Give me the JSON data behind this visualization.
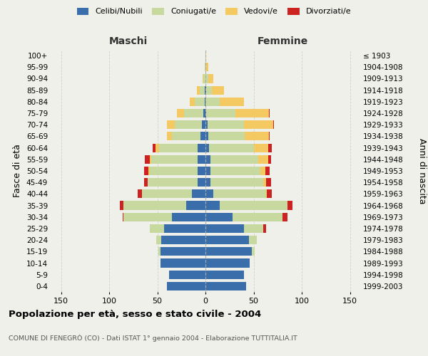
{
  "age_groups": [
    "0-4",
    "5-9",
    "10-14",
    "15-19",
    "20-24",
    "25-29",
    "30-34",
    "35-39",
    "40-44",
    "45-49",
    "50-54",
    "55-59",
    "60-64",
    "65-69",
    "70-74",
    "75-79",
    "80-84",
    "85-89",
    "90-94",
    "95-99",
    "100+"
  ],
  "birth_years": [
    "1999-2003",
    "1994-1998",
    "1989-1993",
    "1984-1988",
    "1979-1983",
    "1974-1978",
    "1969-1973",
    "1964-1968",
    "1959-1963",
    "1954-1958",
    "1949-1953",
    "1944-1948",
    "1939-1943",
    "1934-1938",
    "1929-1933",
    "1924-1928",
    "1919-1923",
    "1914-1918",
    "1909-1913",
    "1904-1908",
    "≤ 1903"
  ],
  "male": {
    "celibe": [
      40,
      38,
      47,
      47,
      46,
      43,
      35,
      20,
      14,
      8,
      8,
      8,
      8,
      5,
      4,
      2,
      1,
      1,
      0,
      0,
      0
    ],
    "coniugato": [
      0,
      0,
      0,
      2,
      5,
      15,
      50,
      65,
      52,
      52,
      50,
      48,
      40,
      30,
      28,
      20,
      10,
      5,
      2,
      1,
      0
    ],
    "vedovo": [
      0,
      0,
      0,
      0,
      0,
      0,
      0,
      0,
      0,
      0,
      1,
      2,
      4,
      5,
      8,
      8,
      5,
      3,
      1,
      0,
      0
    ],
    "divorziato": [
      0,
      0,
      0,
      0,
      0,
      0,
      1,
      4,
      4,
      4,
      5,
      5,
      3,
      0,
      0,
      0,
      0,
      0,
      0,
      0,
      0
    ]
  },
  "female": {
    "nubile": [
      42,
      40,
      46,
      48,
      45,
      40,
      28,
      15,
      8,
      5,
      5,
      5,
      4,
      3,
      2,
      1,
      0,
      1,
      0,
      0,
      0
    ],
    "coniugata": [
      0,
      0,
      0,
      3,
      8,
      20,
      52,
      70,
      55,
      55,
      52,
      50,
      46,
      38,
      38,
      30,
      15,
      6,
      3,
      1,
      0
    ],
    "vedova": [
      0,
      0,
      0,
      0,
      0,
      0,
      0,
      0,
      1,
      3,
      5,
      10,
      15,
      25,
      30,
      35,
      25,
      12,
      5,
      2,
      1
    ],
    "divorziata": [
      0,
      0,
      0,
      0,
      0,
      3,
      5,
      5,
      5,
      5,
      5,
      3,
      4,
      1,
      1,
      1,
      0,
      0,
      0,
      0,
      0
    ]
  },
  "colors": {
    "celibe": "#3a6eab",
    "coniugato": "#c8d9a0",
    "vedovo": "#f5c961",
    "divorziato": "#cc2222"
  },
  "xlim": 160,
  "title": "Popolazione per età, sesso e stato civile - 2004",
  "subtitle": "COMUNE DI FENEGRÒ (CO) - Dati ISTAT 1° gennaio 2004 - Elaborazione TUTTITALIA.IT",
  "xlabel_left": "Maschi",
  "xlabel_right": "Femmine",
  "ylabel_left": "Fasce di età",
  "ylabel_right": "Anni di nascita",
  "bg_color": "#f0f0eb",
  "grid_color": "#cccccc"
}
